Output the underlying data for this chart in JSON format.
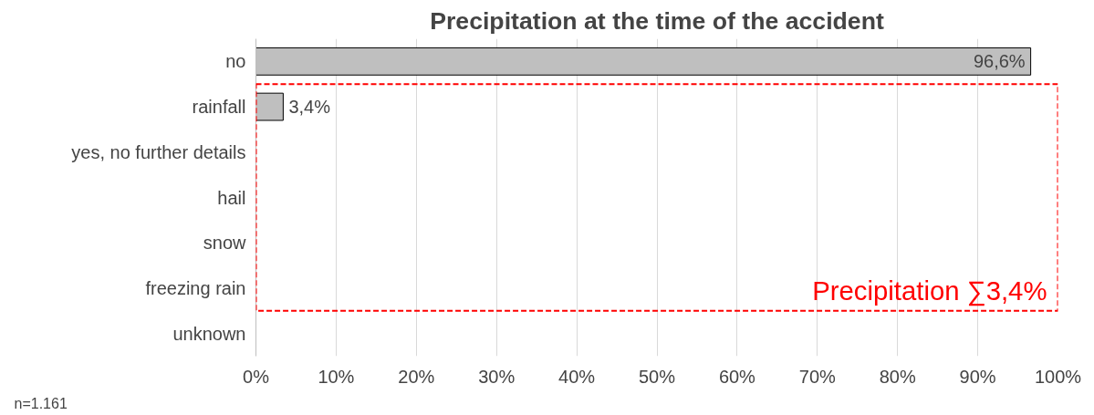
{
  "chart_data": {
    "type": "bar",
    "orientation": "horizontal",
    "title": "Precipitation at the time of the accident",
    "categories": [
      "no",
      "rainfall",
      "yes, no further details",
      "hail",
      "snow",
      "freezing rain",
      "unknown"
    ],
    "values": [
      96.6,
      3.4,
      0,
      0,
      0,
      0,
      0
    ],
    "value_labels": [
      "96,6%",
      "3,4%",
      null,
      null,
      null,
      null,
      null
    ],
    "color": "#bfbfbf",
    "xlim": [
      0,
      100
    ],
    "xticks": [
      {
        "value": 0,
        "label": "0%"
      },
      {
        "value": 10,
        "label": "10%"
      },
      {
        "value": 20,
        "label": "20%"
      },
      {
        "value": 30,
        "label": "30%"
      },
      {
        "value": 40,
        "label": "40%"
      },
      {
        "value": 50,
        "label": "50%"
      },
      {
        "value": 60,
        "label": "60%"
      },
      {
        "value": 70,
        "label": "70%"
      },
      {
        "value": 80,
        "label": "80%"
      },
      {
        "value": 90,
        "label": "90%"
      },
      {
        "value": 100,
        "label": "100%"
      }
    ],
    "grid": "x",
    "annotations": [
      "Precipitation ∑3,4%",
      "n=1.161"
    ]
  }
}
